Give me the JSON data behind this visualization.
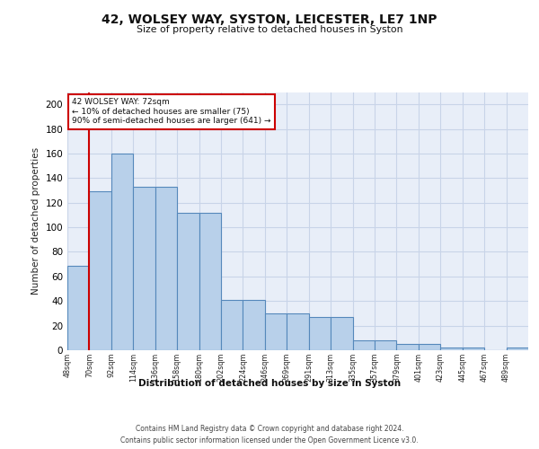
{
  "title": "42, WOLSEY WAY, SYSTON, LEICESTER, LE7 1NP",
  "subtitle": "Size of property relative to detached houses in Syston",
  "xlabel": "Distribution of detached houses by size in Syston",
  "ylabel": "Number of detached properties",
  "bar_color": "#b8d0ea",
  "bar_edge_color": "#5588bb",
  "grid_color": "#c8d4e8",
  "bg_color": "#e8eef8",
  "vline_color": "#cc0000",
  "annotation_line1": "42 WOLSEY WAY: 72sqm",
  "annotation_line2": "← 10% of detached houses are smaller (75)",
  "annotation_line3": "90% of semi-detached houses are larger (641) →",
  "annotation_box_color": "#cc0000",
  "footnote1": "Contains HM Land Registry data © Crown copyright and database right 2024.",
  "footnote2": "Contains public sector information licensed under the Open Government Licence v3.0.",
  "tick_labels": [
    "48sqm",
    "70sqm",
    "92sqm",
    "114sqm",
    "136sqm",
    "158sqm",
    "180sqm",
    "202sqm",
    "224sqm",
    "246sqm",
    "269sqm",
    "291sqm",
    "313sqm",
    "335sqm",
    "357sqm",
    "379sqm",
    "401sqm",
    "423sqm",
    "445sqm",
    "467sqm",
    "489sqm"
  ],
  "bar_heights": [
    69,
    129,
    160,
    133,
    133,
    112,
    112,
    41,
    41,
    30,
    30,
    27,
    27,
    8,
    8,
    5,
    5,
    2,
    2,
    0,
    2
  ],
  "ylim": [
    0,
    210
  ],
  "yticks": [
    0,
    20,
    40,
    60,
    80,
    100,
    120,
    140,
    160,
    180,
    200
  ],
  "vline_pos": 1.0
}
